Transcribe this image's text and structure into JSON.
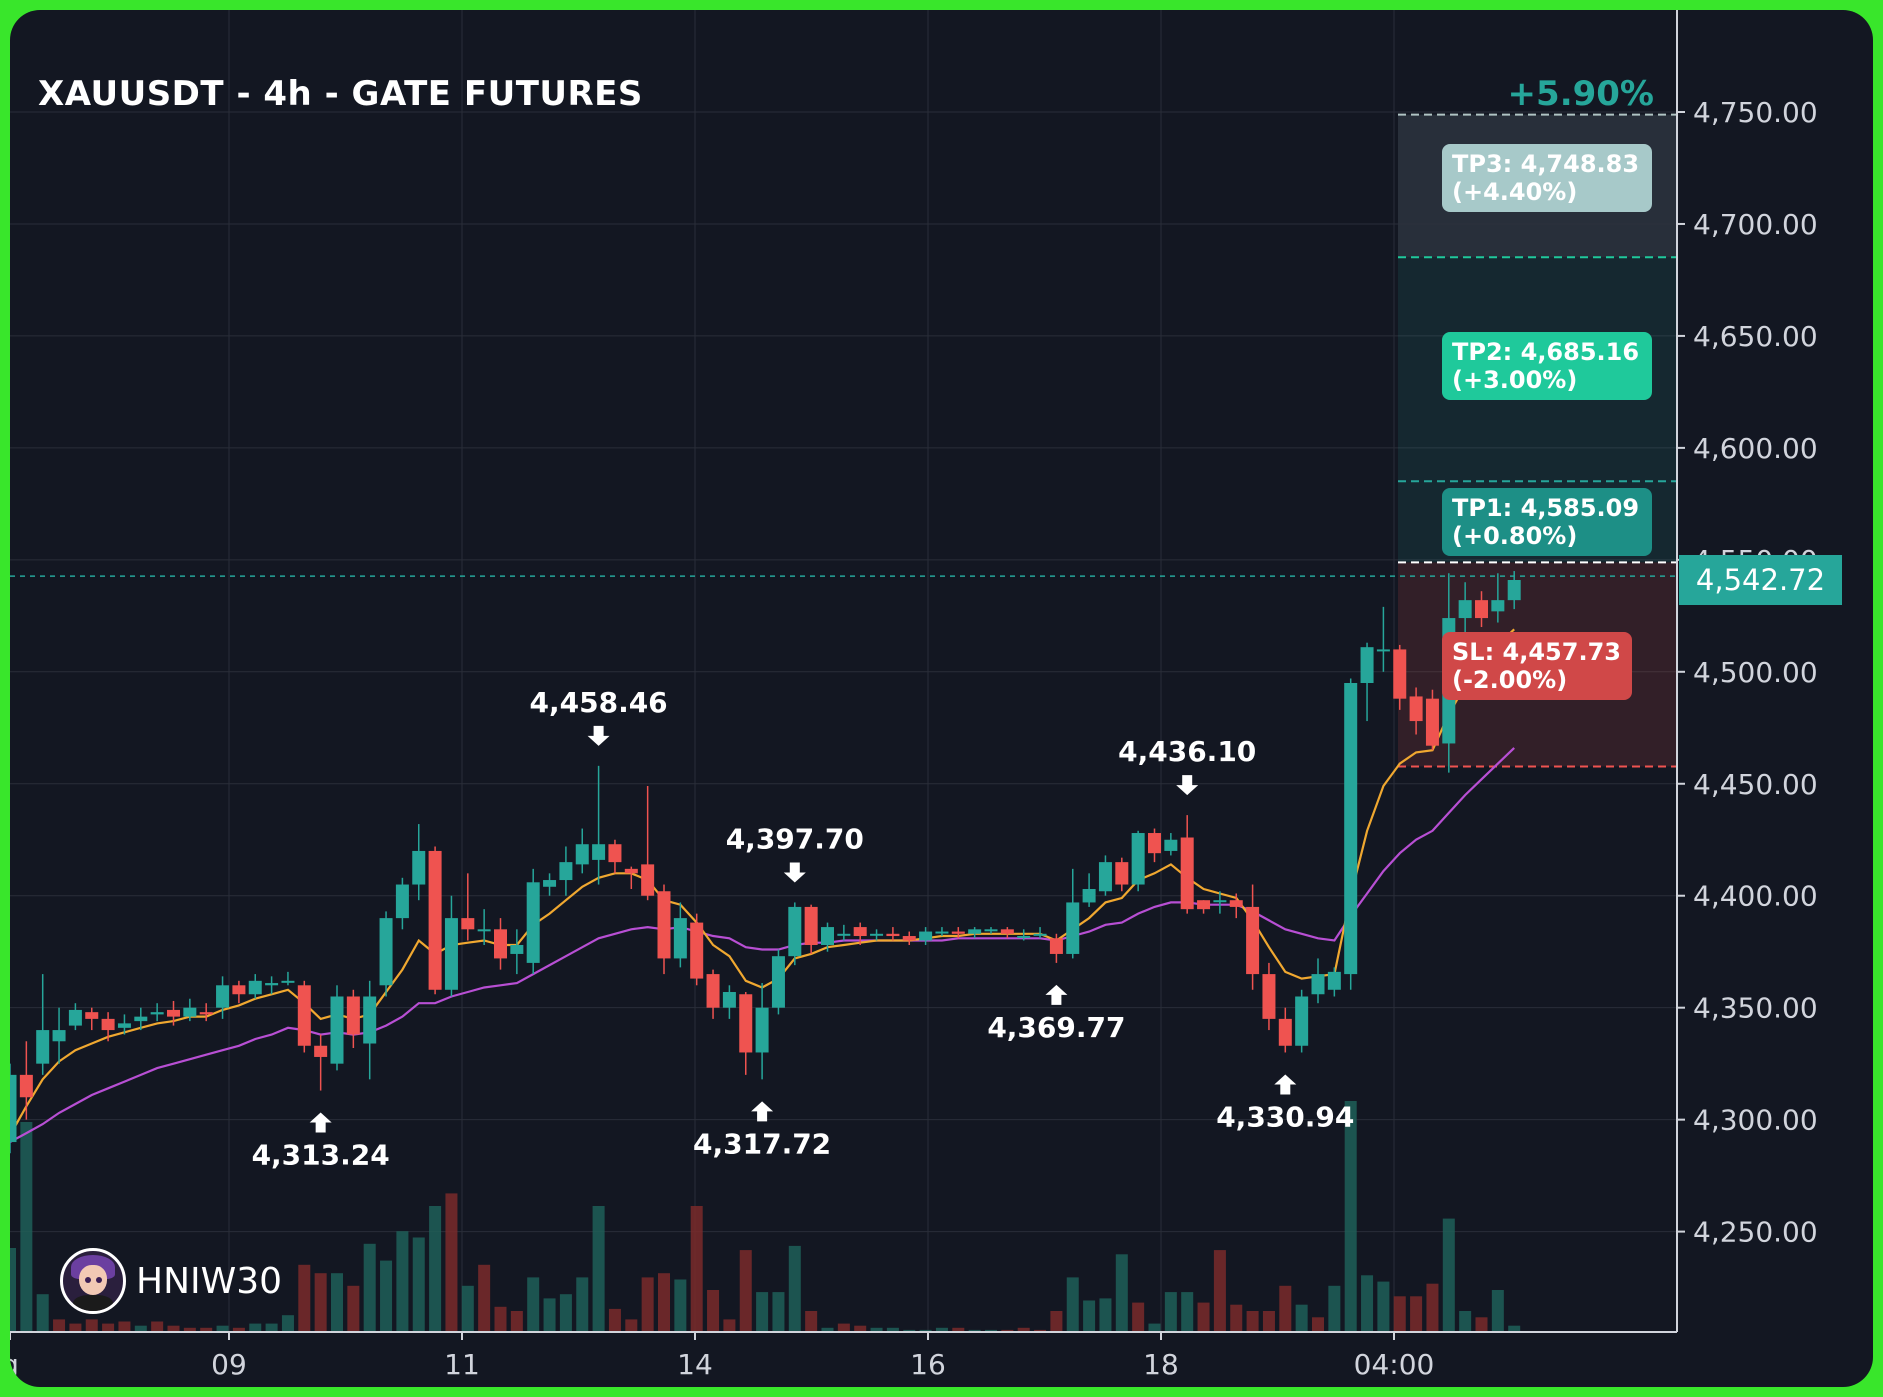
{
  "title": "XAUUSDT - 4h - GATE FUTURES",
  "performance": "+5.90%",
  "brand": {
    "name": "HNIW30",
    "avatar_icon": "avatar-icon"
  },
  "last_price": "4,542.72",
  "targets": {
    "tp3": {
      "line1": "TP3: 4,748.83",
      "line2": "(+4.40%)",
      "price": 4748.83
    },
    "tp2": {
      "line1": "TP2: 4,685.16",
      "line2": "(+3.00%)",
      "price": 4685.16
    },
    "tp1": {
      "line1": "TP1: 4,585.09",
      "line2": "(+0.80%)",
      "price": 4585.09
    },
    "sl": {
      "line1": "SL: 4,457.73",
      "line2": "(-2.00%)",
      "price": 4457.73
    },
    "entry": 4548.85
  },
  "colors": {
    "background": "#131722",
    "up": "#26a69a",
    "down": "#ef5350",
    "ema_fast": "#f0a830",
    "ema_slow": "#b84fd4",
    "tp_zone": "#26a69a",
    "sl_zone": "#ef5350",
    "frame": "#39e62b"
  },
  "chart_data": {
    "type": "candlestick",
    "title": "XAUUSDT - 4h - GATE FUTURES",
    "ylim": [
      4215,
      4760
    ],
    "y_ticks": [
      "4,250.00",
      "4,300.00",
      "4,350.00",
      "4,400.00",
      "4,450.00",
      "4,500.00",
      "4,550.00",
      "4,600.00",
      "4,650.00",
      "4,700.00",
      "4,750.00"
    ],
    "x_ticks": [
      "g",
      "09",
      "11",
      "14",
      "16",
      "18",
      "04:00"
    ],
    "candles": [
      [
        4290,
        4320,
        4325,
        4285
      ],
      [
        4320,
        4310,
        4335,
        4300
      ],
      [
        4325,
        4340,
        4365,
        4320
      ],
      [
        4335,
        4340,
        4350,
        4325
      ],
      [
        4342,
        4349,
        4352,
        4340
      ],
      [
        4348,
        4345,
        4350,
        4340
      ],
      [
        4345,
        4340,
        4348,
        4335
      ],
      [
        4341,
        4343,
        4347,
        4338
      ],
      [
        4344,
        4346,
        4350,
        4340
      ],
      [
        4347,
        4348,
        4352,
        4344
      ],
      [
        4349,
        4346,
        4353,
        4342
      ],
      [
        4346,
        4350,
        4354,
        4344
      ],
      [
        4348,
        4347,
        4352,
        4344
      ],
      [
        4350,
        4360,
        4364,
        4345
      ],
      [
        4360,
        4356,
        4362,
        4352
      ],
      [
        4356,
        4362,
        4365,
        4354
      ],
      [
        4360,
        4361,
        4364,
        4356
      ],
      [
        4362,
        4362,
        4366,
        4360
      ],
      [
        4360,
        4333,
        4362,
        4330
      ],
      [
        4333,
        4328,
        4338,
        4313
      ],
      [
        4325,
        4355,
        4360,
        4322
      ],
      [
        4355,
        4338,
        4358,
        4332
      ],
      [
        4334,
        4355,
        4362,
        4318
      ],
      [
        4360,
        4390,
        4393,
        4355
      ],
      [
        4390,
        4405,
        4408,
        4385
      ],
      [
        4405,
        4420,
        4432,
        4398
      ],
      [
        4420,
        4358,
        4422,
        4356
      ],
      [
        4358,
        4390,
        4400,
        4355
      ],
      [
        4390,
        4385,
        4410,
        4380
      ],
      [
        4385,
        4385,
        4394,
        4378
      ],
      [
        4385,
        4372,
        4390,
        4367
      ],
      [
        4374,
        4378,
        4385,
        4365
      ],
      [
        4370,
        4406,
        4412,
        4365
      ],
      [
        4404,
        4407,
        4410,
        4400
      ],
      [
        4407,
        4415,
        4422,
        4400
      ],
      [
        4414,
        4423,
        4430,
        4410
      ],
      [
        4416,
        4423,
        4458,
        4405
      ],
      [
        4423,
        4415,
        4425,
        4410
      ],
      [
        4412,
        4410,
        4413,
        4403
      ],
      [
        4414,
        4400,
        4449,
        4398
      ],
      [
        4402,
        4372,
        4405,
        4365
      ],
      [
        4372,
        4390,
        4397,
        4368
      ],
      [
        4388,
        4363,
        4392,
        4360
      ],
      [
        4365,
        4350,
        4367,
        4345
      ],
      [
        4350,
        4357,
        4360,
        4345
      ],
      [
        4356,
        4330,
        4357,
        4320
      ],
      [
        4330,
        4350,
        4361,
        4318
      ],
      [
        4350,
        4373,
        4376,
        4347
      ],
      [
        4373,
        4395,
        4397,
        4369
      ],
      [
        4395,
        4378,
        4396,
        4374
      ],
      [
        4378,
        4386,
        4388,
        4375
      ],
      [
        4383,
        4383,
        4387,
        4380
      ],
      [
        4386,
        4382,
        4388,
        4378
      ],
      [
        4383,
        4383,
        4385,
        4380
      ],
      [
        4383,
        4382,
        4386,
        4380
      ],
      [
        4382,
        4380,
        4384,
        4378
      ],
      [
        4380,
        4384,
        4386,
        4378
      ],
      [
        4384,
        4384,
        4386,
        4382
      ],
      [
        4384,
        4383,
        4386,
        4381
      ],
      [
        4383,
        4385,
        4386,
        4381
      ],
      [
        4385,
        4385,
        4386,
        4383
      ],
      [
        4385,
        4383,
        4386,
        4381
      ],
      [
        4382,
        4382,
        4385,
        4380
      ],
      [
        4383,
        4383,
        4386,
        4381
      ],
      [
        4381,
        4374,
        4383,
        4370
      ],
      [
        4374,
        4397,
        4412,
        4372
      ],
      [
        4397,
        4403,
        4410,
        4395
      ],
      [
        4402,
        4415,
        4418,
        4400
      ],
      [
        4415,
        4405,
        4417,
        4402
      ],
      [
        4405,
        4428,
        4429,
        4402
      ],
      [
        4428,
        4419,
        4430,
        4415
      ],
      [
        4420,
        4425,
        4428,
        4418
      ],
      [
        4426,
        4394,
        4436,
        4392
      ],
      [
        4398,
        4394,
        4398,
        4392
      ],
      [
        4398,
        4398,
        4402,
        4392
      ],
      [
        4398,
        4395,
        4401,
        4390
      ],
      [
        4395,
        4365,
        4405,
        4358
      ],
      [
        4365,
        4345,
        4370,
        4340
      ],
      [
        4345,
        4333,
        4350,
        4330
      ],
      [
        4333,
        4355,
        4358,
        4330
      ],
      [
        4356,
        4365,
        4372,
        4352
      ],
      [
        4358,
        4366,
        4368,
        4355
      ],
      [
        4365,
        4495,
        4497,
        4358
      ],
      [
        4495,
        4511,
        4513,
        4478
      ],
      [
        4510,
        4510,
        4529,
        4500
      ],
      [
        4510,
        4488,
        4512,
        4483
      ],
      [
        4489,
        4478,
        4493,
        4472
      ],
      [
        4488,
        4467,
        4492,
        4465
      ],
      [
        4468,
        4524,
        4544,
        4455
      ],
      [
        4524,
        4532,
        4540,
        4505
      ],
      [
        4532,
        4524,
        4536,
        4520
      ],
      [
        4527,
        4532,
        4544,
        4522
      ],
      [
        4532,
        4541,
        4545,
        4528
      ]
    ],
    "volumes": [
      [
        40,
        1
      ],
      [
        100,
        1
      ],
      [
        18,
        1
      ],
      [
        6,
        0
      ],
      [
        4,
        0
      ],
      [
        6,
        0
      ],
      [
        4,
        0
      ],
      [
        5,
        0
      ],
      [
        3,
        1
      ],
      [
        5,
        0
      ],
      [
        3,
        0
      ],
      [
        2,
        0
      ],
      [
        2,
        0
      ],
      [
        3,
        1
      ],
      [
        2,
        0
      ],
      [
        4,
        1
      ],
      [
        4,
        1
      ],
      [
        8,
        1
      ],
      [
        32,
        0
      ],
      [
        28,
        0
      ],
      [
        28,
        1
      ],
      [
        22,
        0
      ],
      [
        42,
        1
      ],
      [
        34,
        1
      ],
      [
        48,
        1
      ],
      [
        45,
        1
      ],
      [
        60,
        1
      ],
      [
        66,
        0
      ],
      [
        22,
        1
      ],
      [
        32,
        0
      ],
      [
        12,
        0
      ],
      [
        10,
        0
      ],
      [
        26,
        1
      ],
      [
        16,
        1
      ],
      [
        18,
        1
      ],
      [
        26,
        1
      ],
      [
        60,
        1
      ],
      [
        11,
        0
      ],
      [
        6,
        0
      ],
      [
        26,
        0
      ],
      [
        28,
        0
      ],
      [
        25,
        1
      ],
      [
        60,
        0
      ],
      [
        20,
        0
      ],
      [
        6,
        0
      ],
      [
        39,
        0
      ],
      [
        19,
        1
      ],
      [
        19,
        1
      ],
      [
        41,
        1
      ],
      [
        10,
        0
      ],
      [
        2,
        1
      ],
      [
        4,
        0
      ],
      [
        3,
        0
      ],
      [
        2,
        1
      ],
      [
        2,
        1
      ],
      [
        1,
        1
      ],
      [
        1,
        1
      ],
      [
        2,
        1
      ],
      [
        2,
        0
      ],
      [
        1,
        1
      ],
      [
        1,
        1
      ],
      [
        1,
        0
      ],
      [
        2,
        0
      ],
      [
        1,
        0
      ],
      [
        10,
        0
      ],
      [
        26,
        1
      ],
      [
        15,
        1
      ],
      [
        16,
        1
      ],
      [
        37,
        1
      ],
      [
        14,
        0
      ],
      [
        4,
        1
      ],
      [
        19,
        1
      ],
      [
        19,
        1
      ],
      [
        14,
        0
      ],
      [
        39,
        0
      ],
      [
        13,
        0
      ],
      [
        10,
        0
      ],
      [
        10,
        0
      ],
      [
        22,
        0
      ],
      [
        13,
        1
      ],
      [
        7,
        0
      ],
      [
        22,
        1
      ],
      [
        110,
        1
      ],
      [
        27,
        1
      ],
      [
        24,
        1
      ],
      [
        17,
        0
      ],
      [
        17,
        0
      ],
      [
        23,
        0
      ],
      [
        54,
        1
      ],
      [
        10,
        1
      ],
      [
        7,
        0
      ],
      [
        20,
        1
      ],
      [
        3,
        1
      ]
    ],
    "ema_fast": [
      4293,
      4306,
      4318,
      4326,
      4331,
      4334,
      4337,
      4339,
      4341,
      4343,
      4344,
      4346,
      4346,
      4349,
      4351,
      4354,
      4356,
      4358,
      4352,
      4345,
      4347,
      4345,
      4347,
      4357,
      4367,
      4380,
      4374,
      4378,
      4379,
      4380,
      4378,
      4378,
      4387,
      4392,
      4398,
      4404,
      4408,
      4410,
      4410,
      4407,
      4398,
      4396,
      4388,
      4378,
      4373,
      4362,
      4359,
      4363,
      4372,
      4374,
      4377,
      4378,
      4379,
      4380,
      4380,
      4380,
      4381,
      4382,
      4382,
      4383,
      4383,
      4383,
      4383,
      4383,
      4380,
      4385,
      4390,
      4397,
      4399,
      4407,
      4410,
      4414,
      4408,
      4403,
      4401,
      4399,
      4389,
      4377,
      4366,
      4363,
      4364,
      4365,
      4400,
      4429,
      4449,
      4459,
      4464,
      4465,
      4481,
      4494,
      4503,
      4512,
      4519
    ],
    "ema_slow": [
      4290,
      4294,
      4298,
      4303,
      4307,
      4311,
      4314,
      4317,
      4320,
      4323,
      4325,
      4327,
      4329,
      4331,
      4333,
      4336,
      4338,
      4341,
      4340,
      4338,
      4339,
      4338,
      4339,
      4342,
      4346,
      4352,
      4352,
      4355,
      4357,
      4359,
      4360,
      4361,
      4365,
      4369,
      4373,
      4377,
      4381,
      4383,
      4385,
      4386,
      4385,
      4386,
      4384,
      4382,
      4381,
      4377,
      4376,
      4376,
      4378,
      4379,
      4379,
      4380,
      4380,
      4380,
      4380,
      4380,
      4380,
      4380,
      4381,
      4381,
      4381,
      4381,
      4381,
      4381,
      4380,
      4382,
      4384,
      4387,
      4388,
      4392,
      4395,
      4397,
      4397,
      4396,
      4396,
      4396,
      4393,
      4389,
      4385,
      4383,
      4381,
      4380,
      4391,
      4401,
      4411,
      4419,
      4425,
      4429,
      4437,
      4445,
      4452,
      4459,
      4466
    ],
    "annotations": [
      {
        "label": "4,313.24",
        "type": "low",
        "index": 19,
        "price": 4313.24
      },
      {
        "label": "4,458.46",
        "type": "high",
        "index": 36,
        "price": 4458.46
      },
      {
        "label": "4,317.72",
        "type": "low",
        "index": 46,
        "price": 4317.72
      },
      {
        "label": "4,397.70",
        "type": "high",
        "index": 48,
        "price": 4397.7
      },
      {
        "label": "4,369.77",
        "type": "low",
        "index": 64,
        "price": 4369.77
      },
      {
        "label": "4,436.10",
        "type": "high",
        "index": 72,
        "price": 4436.1
      },
      {
        "label": "4,330.94",
        "type": "low",
        "index": 78,
        "price": 4330.94
      }
    ],
    "last_price": 4542.72,
    "grid": true
  }
}
